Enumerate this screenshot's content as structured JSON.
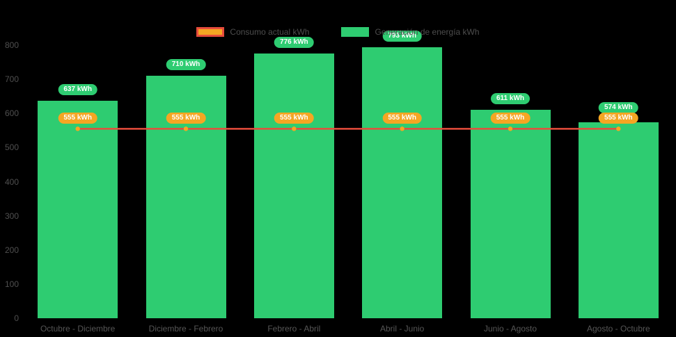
{
  "chart_data": {
    "type": "bar",
    "background": "#000000",
    "categories": [
      "Octubre - Diciembre",
      "Diciembre - Febrero",
      "Febrero - Abril",
      "Abril - Junio",
      "Junio - Agosto",
      "Agosto - Octubre"
    ],
    "series": [
      {
        "name": "Generación de energía kWh",
        "type": "bar",
        "color": "#2ecc71",
        "values": [
          637,
          710,
          776,
          793,
          611,
          574
        ],
        "labels": [
          "637 kWh",
          "710 kWh",
          "776 kWh",
          "793 kWh",
          "611 kWh",
          "574 kWh"
        ]
      },
      {
        "name": "Consumo actual kWh",
        "type": "line",
        "color": "#e74c3c",
        "marker_color": "#f5a623",
        "values": [
          555,
          555,
          555,
          555,
          555,
          555
        ],
        "labels": [
          "555 kWh",
          "555 kWh",
          "555 kWh",
          "555 kWh",
          "555 kWh",
          "555 kWh"
        ]
      }
    ],
    "ylim": [
      0,
      800
    ],
    "yticks": [
      0,
      100,
      200,
      300,
      400,
      500,
      600,
      700,
      800
    ],
    "legend_position": "top",
    "grid": false,
    "axis_text_color": "#555555",
    "legend_text_color": "#4d4d4d"
  },
  "legend": [
    {
      "label": "Consumo actual kWh"
    },
    {
      "label": "Generación de energía kWh"
    }
  ]
}
